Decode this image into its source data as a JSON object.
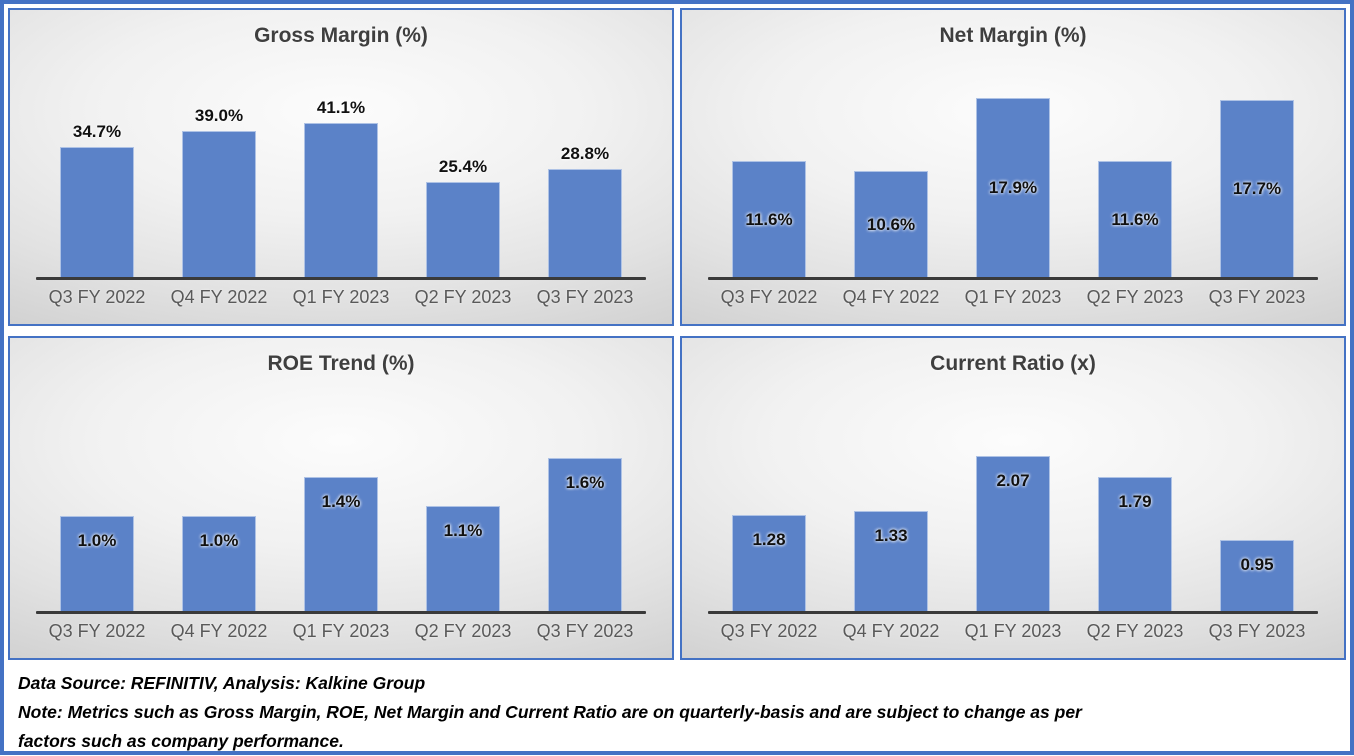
{
  "frame": {
    "border_color": "#4472C4",
    "bar_color": "#5b82c8",
    "axis_line_color": "#3a3a3a",
    "title_color": "#3f3f3f",
    "category_label_color": "#595959"
  },
  "chart_data": [
    {
      "type": "bar",
      "title": "Gross Margin (%)",
      "categories": [
        "Q3 FY 2022",
        "Q4 FY 2022",
        "Q1 FY 2023",
        "Q2 FY 2023",
        "Q3 FY 2023"
      ],
      "values": [
        34.7,
        39.0,
        41.1,
        25.4,
        28.8
      ],
      "value_labels": [
        "34.7%",
        "39.0%",
        "41.1%",
        "25.4%",
        "28.8%"
      ],
      "label_position": "outside",
      "axis_max": 56,
      "ylim": [
        0,
        56
      ],
      "grid": false,
      "legend": false,
      "bar_color": "#5b82c8"
    },
    {
      "type": "bar",
      "title": "Net Margin (%)",
      "categories": [
        "Q3 FY 2022",
        "Q4 FY 2022",
        "Q1 FY 2023",
        "Q2 FY 2023",
        "Q3 FY 2023"
      ],
      "values": [
        11.6,
        10.6,
        17.9,
        11.6,
        17.7
      ],
      "value_labels": [
        "11.6%",
        "10.6%",
        "17.9%",
        "11.6%",
        "17.7%"
      ],
      "label_position": "center",
      "axis_max": 21,
      "ylim": [
        0,
        21
      ],
      "grid": false,
      "legend": false,
      "bar_color": "#5b82c8"
    },
    {
      "type": "bar",
      "title": "ROE Trend (%)",
      "categories": [
        "Q3 FY 2022",
        "Q4 FY 2022",
        "Q1 FY 2023",
        "Q2 FY 2023",
        "Q3 FY 2023"
      ],
      "values": [
        1.0,
        1.0,
        1.4,
        1.1,
        1.6
      ],
      "value_labels": [
        "1.0%",
        "1.0%",
        "1.4%",
        "1.1%",
        "1.6%"
      ],
      "label_position": "inside-end",
      "axis_max": 2.2,
      "ylim": [
        0,
        2.2
      ],
      "grid": false,
      "legend": false,
      "bar_color": "#5b82c8"
    },
    {
      "type": "bar",
      "title": "Current Ratio (x)",
      "categories": [
        "Q3 FY 2022",
        "Q4 FY 2022",
        "Q1 FY 2023",
        "Q2 FY 2023",
        "Q3 FY 2023"
      ],
      "values": [
        1.28,
        1.33,
        2.07,
        1.79,
        0.95
      ],
      "value_labels": [
        "1.28",
        "1.33",
        "2.07",
        "1.79",
        "0.95"
      ],
      "label_position": "inside-end",
      "axis_max": 2.8,
      "ylim": [
        0,
        2.8
      ],
      "grid": false,
      "legend": false,
      "bar_color": "#5b82c8"
    }
  ],
  "footer": {
    "lines": [
      "Data Source: REFINITIV, Analysis: Kalkine Group",
      "Note: Metrics such as Gross Margin, ROE, Net Margin and Current Ratio are on quarterly-basis and are subject to change as per",
      "factors such as company performance."
    ]
  }
}
